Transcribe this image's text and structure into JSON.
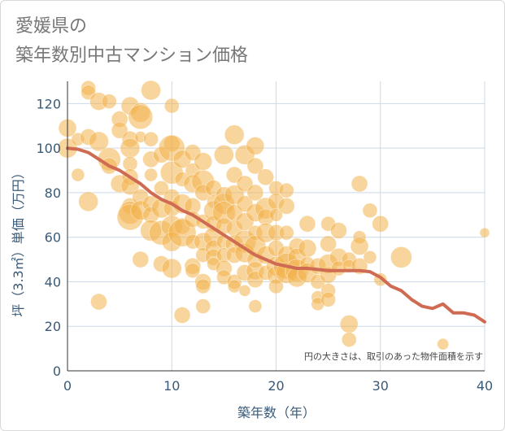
{
  "title": {
    "line1": "愛媛県の",
    "line2": "築年数別中古マンション価格"
  },
  "colors": {
    "bubble": "#f2b24d",
    "trend": "#cf6b52",
    "grid": "#ccd9e6",
    "tick": "#3a5a78"
  },
  "chart_data": {
    "type": "scatter",
    "xlabel": "築年数（年）",
    "ylabel": "坪（3.3㎡）単価（万円）",
    "xlim": [
      0,
      40
    ],
    "ylim": [
      0,
      130
    ],
    "xticks": [
      0,
      10,
      20,
      30,
      40
    ],
    "yticks": [
      0,
      20,
      40,
      60,
      80,
      100,
      120
    ],
    "grid": true,
    "note": "円の大きさは、取引のあった物件面積を示す",
    "points": [
      [
        0,
        109,
        11
      ],
      [
        0,
        100,
        12
      ],
      [
        1,
        88,
        8
      ],
      [
        1,
        104,
        8
      ],
      [
        2,
        127,
        9
      ],
      [
        2,
        125,
        9
      ],
      [
        2,
        76,
        12
      ],
      [
        2,
        105,
        10
      ],
      [
        3,
        121,
        11
      ],
      [
        3,
        31,
        10
      ],
      [
        3,
        103,
        12
      ],
      [
        4,
        121,
        9
      ],
      [
        4,
        95,
        14
      ],
      [
        4,
        92,
        10
      ],
      [
        5,
        113,
        10
      ],
      [
        5,
        108,
        10
      ],
      [
        5,
        84,
        11
      ],
      [
        6,
        119,
        11
      ],
      [
        6,
        104,
        10
      ],
      [
        6,
        100,
        12
      ],
      [
        6,
        93,
        9
      ],
      [
        6,
        87,
        10
      ],
      [
        6,
        83,
        11
      ],
      [
        6,
        74,
        10
      ],
      [
        6,
        71,
        14
      ],
      [
        6,
        69,
        16
      ],
      [
        7,
        116,
        12
      ],
      [
        7,
        114,
        15
      ],
      [
        7,
        105,
        7
      ],
      [
        7,
        78,
        10
      ],
      [
        7,
        72,
        12
      ],
      [
        7,
        50,
        10
      ],
      [
        8,
        126,
        12
      ],
      [
        8,
        104,
        9
      ],
      [
        8,
        95,
        10
      ],
      [
        8,
        88,
        8
      ],
      [
        8,
        75,
        10
      ],
      [
        8,
        70,
        10
      ],
      [
        8,
        63,
        13
      ],
      [
        9,
        97,
        10
      ],
      [
        9,
        82,
        9
      ],
      [
        9,
        73,
        12
      ],
      [
        9,
        62,
        15
      ],
      [
        9,
        48,
        10
      ],
      [
        10,
        119,
        9
      ],
      [
        10,
        102,
        10
      ],
      [
        10,
        100,
        16
      ],
      [
        10,
        89,
        14
      ],
      [
        10,
        78,
        10
      ],
      [
        10,
        73,
        10
      ],
      [
        10,
        65,
        13
      ],
      [
        10,
        58,
        12
      ],
      [
        10,
        46,
        12
      ],
      [
        11,
        95,
        11
      ],
      [
        11,
        86,
        9
      ],
      [
        11,
        75,
        12
      ],
      [
        11,
        65,
        10
      ],
      [
        11,
        62,
        17
      ],
      [
        11,
        25,
        10
      ],
      [
        12,
        98,
        10
      ],
      [
        12,
        90,
        9
      ],
      [
        12,
        84,
        11
      ],
      [
        12,
        74,
        10
      ],
      [
        12,
        68,
        10
      ],
      [
        12,
        58,
        9
      ],
      [
        12,
        47,
        10
      ],
      [
        12,
        45,
        9
      ],
      [
        13,
        94,
        11
      ],
      [
        13,
        85,
        14
      ],
      [
        13,
        80,
        10
      ],
      [
        13,
        67,
        9
      ],
      [
        13,
        58,
        11
      ],
      [
        13,
        52,
        9
      ],
      [
        13,
        40,
        10
      ],
      [
        13,
        38,
        9
      ],
      [
        13,
        29,
        9
      ],
      [
        14,
        82,
        10
      ],
      [
        14,
        76,
        8
      ],
      [
        14,
        72,
        12
      ],
      [
        14,
        66,
        10
      ],
      [
        14,
        60,
        12
      ],
      [
        14,
        55,
        10
      ],
      [
        14,
        51,
        10
      ],
      [
        14,
        48,
        8
      ],
      [
        15,
        97,
        12
      ],
      [
        15,
        79,
        10
      ],
      [
        15,
        75,
        13
      ],
      [
        15,
        71,
        14
      ],
      [
        15,
        65,
        10
      ],
      [
        15,
        58,
        9
      ],
      [
        15,
        52,
        9
      ],
      [
        15,
        46,
        10
      ],
      [
        15,
        42,
        9
      ],
      [
        16,
        106,
        12
      ],
      [
        16,
        88,
        10
      ],
      [
        16,
        79,
        12
      ],
      [
        16,
        71,
        10
      ],
      [
        16,
        64,
        10
      ],
      [
        16,
        57,
        11
      ],
      [
        16,
        52,
        10
      ],
      [
        16,
        40,
        9
      ],
      [
        16,
        38,
        8
      ],
      [
        17,
        97,
        12
      ],
      [
        17,
        84,
        10
      ],
      [
        17,
        75,
        10
      ],
      [
        17,
        67,
        11
      ],
      [
        17,
        58,
        14
      ],
      [
        17,
        53,
        12
      ],
      [
        17,
        44,
        10
      ],
      [
        17,
        36,
        7
      ],
      [
        18,
        101,
        11
      ],
      [
        18,
        92,
        10
      ],
      [
        18,
        80,
        10
      ],
      [
        18,
        71,
        11
      ],
      [
        18,
        62,
        9
      ],
      [
        18,
        56,
        13
      ],
      [
        18,
        50,
        10
      ],
      [
        18,
        45,
        11
      ],
      [
        18,
        41,
        10
      ],
      [
        18,
        29,
        8
      ],
      [
        19,
        87,
        10
      ],
      [
        19,
        73,
        13
      ],
      [
        19,
        69,
        10
      ],
      [
        19,
        62,
        12
      ],
      [
        19,
        52,
        11
      ],
      [
        19,
        44,
        9
      ],
      [
        20,
        82,
        9
      ],
      [
        20,
        76,
        10
      ],
      [
        20,
        70,
        8
      ],
      [
        20,
        62,
        10
      ],
      [
        20,
        55,
        10
      ],
      [
        20,
        47,
        12
      ],
      [
        20,
        43,
        11
      ],
      [
        20,
        38,
        9
      ],
      [
        21,
        81,
        9
      ],
      [
        21,
        74,
        10
      ],
      [
        21,
        62,
        9
      ],
      [
        21,
        52,
        11
      ],
      [
        21,
        47,
        16
      ],
      [
        21,
        44,
        13
      ],
      [
        22,
        56,
        10
      ],
      [
        22,
        51,
        11
      ],
      [
        22,
        45,
        14
      ],
      [
        22,
        42,
        12
      ],
      [
        23,
        66,
        10
      ],
      [
        23,
        55,
        11
      ],
      [
        23,
        48,
        9
      ],
      [
        23,
        44,
        12
      ],
      [
        24,
        47,
        10
      ],
      [
        24,
        40,
        9
      ],
      [
        24,
        33,
        8
      ],
      [
        24,
        30,
        8
      ],
      [
        25,
        66,
        9
      ],
      [
        25,
        57,
        10
      ],
      [
        25,
        48,
        12
      ],
      [
        25,
        43,
        10
      ],
      [
        25,
        36,
        9
      ],
      [
        25,
        32,
        9
      ],
      [
        26,
        63,
        10
      ],
      [
        26,
        51,
        11
      ],
      [
        26,
        46,
        9
      ],
      [
        27,
        50,
        9
      ],
      [
        27,
        47,
        8
      ],
      [
        27,
        21,
        11
      ],
      [
        27,
        14,
        9
      ],
      [
        28,
        84,
        10
      ],
      [
        28,
        60,
        8
      ],
      [
        28,
        56,
        11
      ],
      [
        28,
        47,
        10
      ],
      [
        29,
        72,
        9
      ],
      [
        29,
        51,
        8
      ],
      [
        30,
        66,
        10
      ],
      [
        30,
        41,
        8
      ],
      [
        32,
        51,
        13
      ],
      [
        36,
        12,
        7
      ],
      [
        40,
        62,
        6
      ]
    ],
    "trend": {
      "x": [
        0,
        1,
        2,
        3,
        4,
        5,
        6,
        7,
        8,
        9,
        10,
        11,
        12,
        13,
        14,
        15,
        16,
        17,
        18,
        19,
        20,
        21,
        22,
        23,
        24,
        25,
        26,
        27,
        28,
        29,
        30,
        31,
        32,
        33,
        34,
        35,
        36,
        37,
        38,
        39,
        40
      ],
      "y": [
        100,
        99.5,
        98,
        95,
        92,
        90,
        87,
        84,
        80,
        77,
        75,
        72,
        70,
        67,
        64,
        61,
        58,
        55,
        52,
        50,
        48,
        47,
        46,
        46,
        45.5,
        45,
        45,
        45,
        45,
        44.5,
        42,
        38,
        36,
        32,
        29,
        28,
        30,
        26,
        26,
        25,
        22
      ]
    }
  }
}
